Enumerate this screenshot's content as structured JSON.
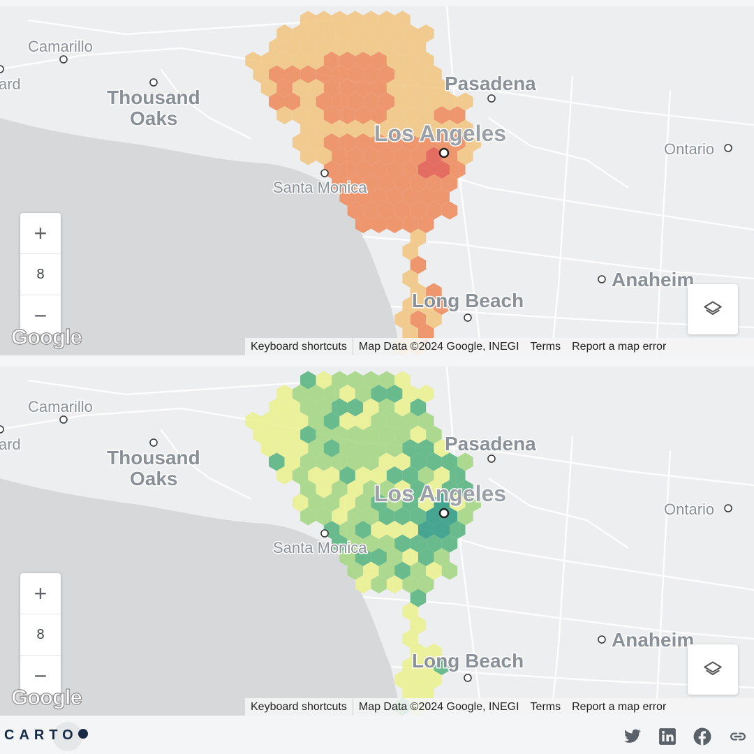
{
  "map": {
    "zoom_level": "8",
    "zoom_in_label": "+",
    "zoom_out_label": "−",
    "google_logo": "Google",
    "attribution": {
      "keyboard": "Keyboard shortcuts",
      "data": "Map Data ©2024 Google, INEGI",
      "terms": "Terms",
      "report": "Report a map error"
    },
    "places": {
      "camarillo": "Camarillo",
      "oxnard_partial": "ard",
      "thousand": "Thousand",
      "oaks": "Oaks",
      "pasadena": "Pasadena",
      "los_angeles": "Los Angeles",
      "ontario": "Ontario",
      "santa_monica": "Santa Monica",
      "anaheim": "Anaheim",
      "long_beach": "Long Beach"
    },
    "colors": {
      "land": "#eceeef",
      "water": "#d6d8da",
      "top_palette": [
        "#f1c582",
        "#ee8b5d",
        "#e25b4e"
      ],
      "bottom_palette": [
        "#eaf08f",
        "#a3d682",
        "#57b47f",
        "#2f9b84"
      ]
    }
  },
  "footer": {
    "brand": "CARTO",
    "icons": [
      "twitter-icon",
      "linkedin-icon",
      "facebook-icon",
      "link-icon"
    ]
  }
}
